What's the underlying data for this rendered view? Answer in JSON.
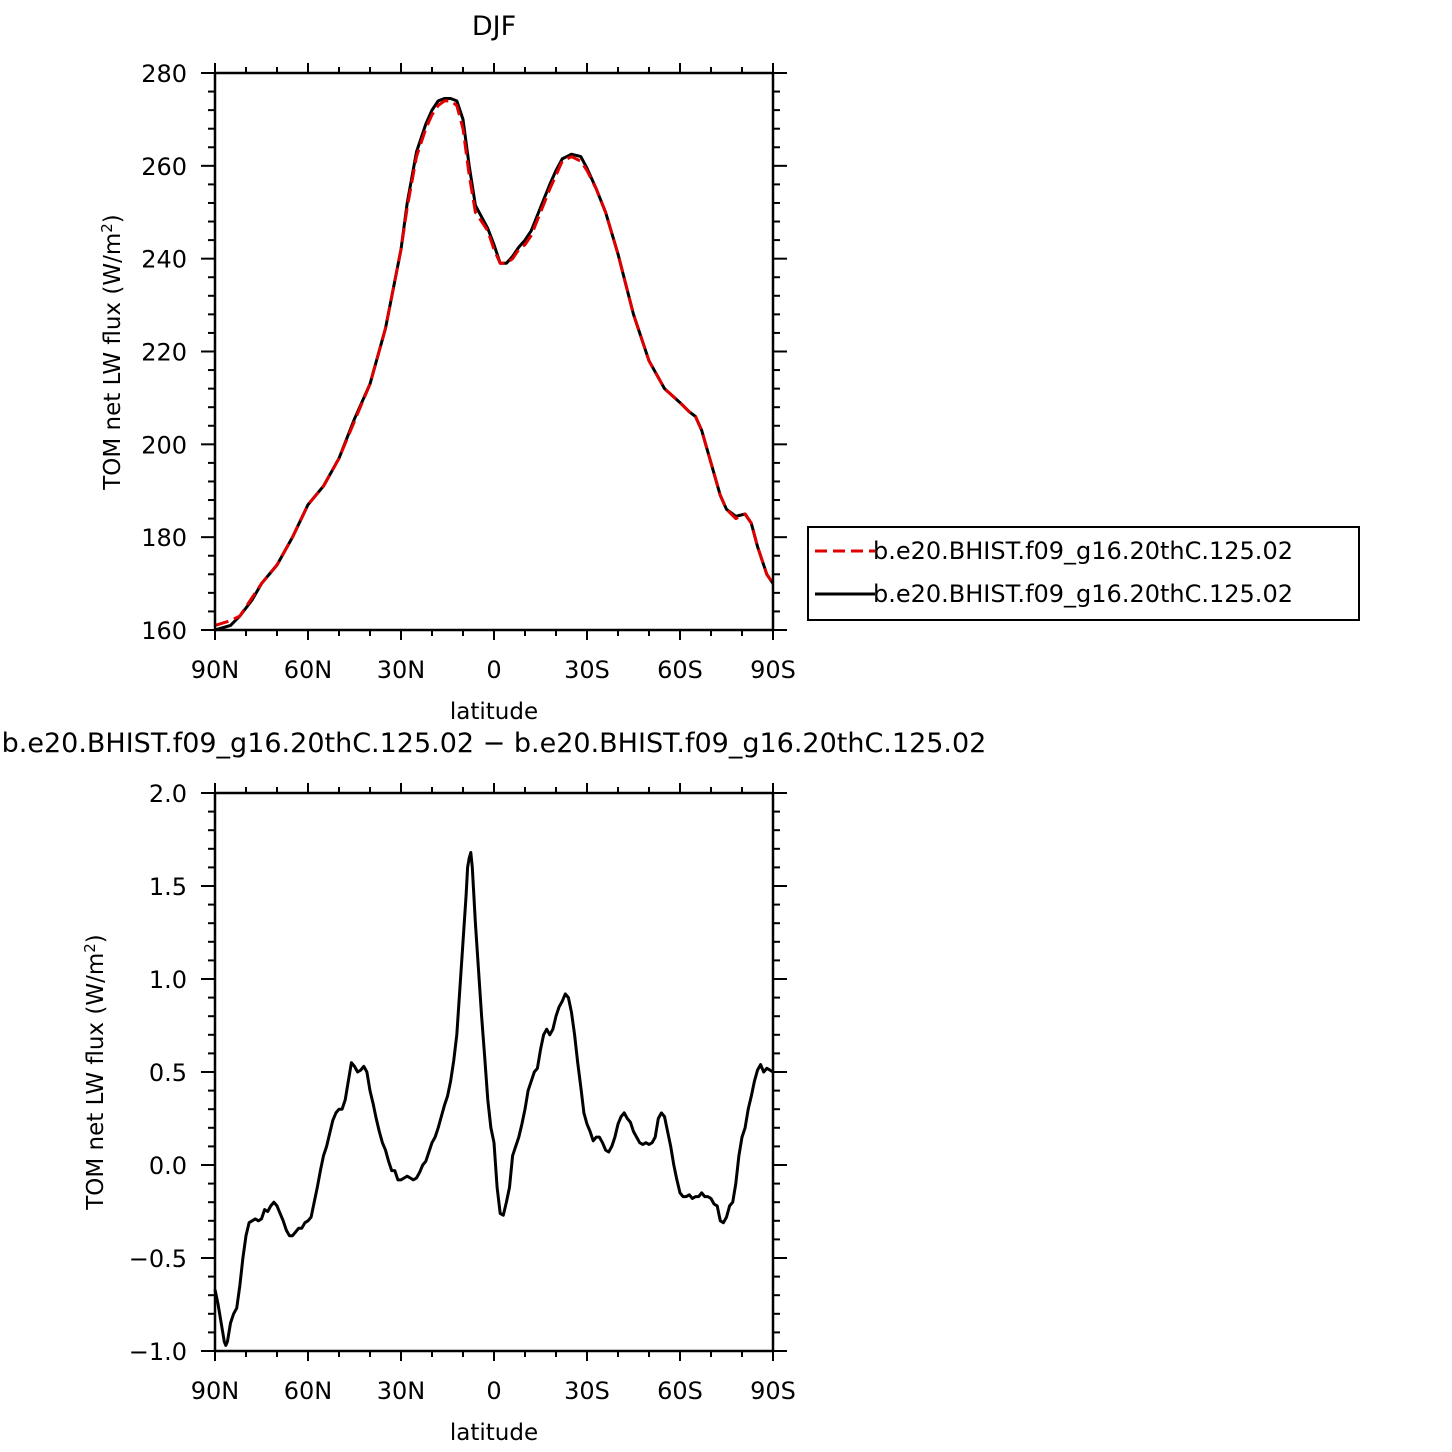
{
  "chart_data": [
    {
      "type": "line",
      "title": "DJF",
      "xlabel": "latitude",
      "ylabel": "TOM net LW flux (W/m²)",
      "ylabel_main": "TOM net LW flux (W/m",
      "ylabel_sup": "2",
      "ylabel_end": ")",
      "xlim": [
        -90,
        90
      ],
      "ylim": [
        160,
        280
      ],
      "xticks": [
        -90,
        -60,
        -30,
        0,
        30,
        60,
        90
      ],
      "xticklabels": [
        "90N",
        "60N",
        "30N",
        "0",
        "30S",
        "60S",
        "90S"
      ],
      "yticks": [
        160,
        180,
        200,
        220,
        240,
        260,
        280
      ],
      "yticklabels": [
        "160",
        "180",
        "200",
        "220",
        "240",
        "260",
        "280"
      ],
      "legend_position": "right",
      "series": [
        {
          "name": "b.e20.BHIST.f09_g16.20thC.125.02",
          "color": "#e00000",
          "dash": "dashed",
          "x": [
            -90,
            -85,
            -82,
            -78,
            -75,
            -70,
            -65,
            -60,
            -55,
            -50,
            -45,
            -40,
            -35,
            -30,
            -28,
            -25,
            -22,
            -20,
            -18,
            -16,
            -14,
            -12,
            -10,
            -8,
            -6,
            -4,
            -2,
            0,
            2,
            4,
            6,
            8,
            10,
            12,
            15,
            18,
            20,
            22,
            25,
            28,
            30,
            33,
            36,
            40,
            45,
            50,
            55,
            60,
            63,
            65,
            67,
            70,
            73,
            75,
            78,
            81,
            83,
            85,
            88,
            90
          ],
          "values": [
            161,
            162,
            163,
            167,
            170,
            174,
            180,
            187,
            191,
            197,
            205,
            213,
            225,
            242,
            251,
            262,
            268,
            271,
            273,
            274,
            274,
            273,
            268,
            258,
            250,
            248,
            246,
            242,
            239,
            239,
            240,
            242,
            243,
            245,
            250,
            255,
            258,
            261,
            262,
            261,
            259,
            255,
            250,
            241,
            228,
            218,
            212,
            209,
            207,
            206,
            203,
            196,
            189,
            186,
            184,
            185,
            183,
            178,
            172,
            170
          ]
        },
        {
          "name": "b.e20.BHIST.f09_g16.20thC.125.02",
          "color": "#000000",
          "dash": "solid",
          "x": [
            -90,
            -85,
            -82,
            -78,
            -75,
            -70,
            -65,
            -60,
            -55,
            -50,
            -45,
            -40,
            -35,
            -30,
            -28,
            -25,
            -22,
            -20,
            -18,
            -16,
            -14,
            -12,
            -10,
            -8,
            -6,
            -4,
            -2,
            0,
            2,
            4,
            6,
            8,
            10,
            12,
            15,
            18,
            20,
            22,
            25,
            28,
            30,
            33,
            36,
            40,
            45,
            50,
            55,
            60,
            63,
            65,
            67,
            70,
            73,
            75,
            78,
            81,
            83,
            85,
            88,
            90
          ],
          "values": [
            160,
            161,
            163,
            166.5,
            170,
            174,
            180,
            187,
            191,
            197,
            205.5,
            213,
            225,
            242,
            252,
            263,
            269,
            272,
            274,
            274.5,
            274.5,
            274,
            270,
            260,
            251.5,
            249,
            246.5,
            243,
            239,
            239,
            240.5,
            242.5,
            244,
            246,
            251,
            256,
            259,
            261.5,
            262.5,
            262,
            259.5,
            255,
            250,
            241,
            228,
            218,
            212,
            209,
            207,
            206,
            203,
            196,
            189,
            186,
            184.5,
            185,
            183,
            178,
            172,
            170
          ]
        }
      ]
    },
    {
      "type": "line",
      "title": "b.e20.BHIST.f09_g16.20thC.125.02 − b.e20.BHIST.f09_g16.20thC.125.02",
      "xlabel": "latitude",
      "ylabel": "TOM net LW flux (W/m²)",
      "ylabel_main": "TOM net LW flux (W/m",
      "ylabel_sup": "2",
      "ylabel_end": ")",
      "xlim": [
        -90,
        90
      ],
      "ylim": [
        -1.0,
        2.0
      ],
      "xticks": [
        -90,
        -60,
        -30,
        0,
        30,
        60,
        90
      ],
      "xticklabels": [
        "90N",
        "60N",
        "30N",
        "0",
        "30S",
        "60S",
        "90S"
      ],
      "yticks": [
        -1.0,
        -0.5,
        0.0,
        0.5,
        1.0,
        1.5,
        2.0
      ],
      "yticklabels": [
        "−1.0",
        "−0.5",
        "0.0",
        "0.5",
        "1.0",
        "1.5",
        "2.0"
      ],
      "series": [
        {
          "color": "#000000",
          "dash": "solid",
          "x": [
            -90,
            -89,
            -88,
            -87,
            -86.5,
            -86,
            -85,
            -84,
            -83,
            -82,
            -81,
            -80,
            -79,
            -78,
            -77,
            -76,
            -75,
            -74,
            -73,
            -72,
            -71,
            -70,
            -69,
            -68,
            -67,
            -66,
            -65,
            -64,
            -63,
            -62,
            -61,
            -60,
            -59,
            -58,
            -57,
            -56,
            -55,
            -54,
            -53,
            -52,
            -51,
            -50,
            -49,
            -48,
            -47,
            -46,
            -45,
            -44,
            -43,
            -42,
            -41,
            -40,
            -39,
            -38,
            -37,
            -36,
            -35,
            -34,
            -33,
            -32,
            -31,
            -30,
            -29,
            -28,
            -27,
            -26,
            -25,
            -24,
            -23,
            -22,
            -21,
            -20,
            -19,
            -18,
            -17,
            -16,
            -15,
            -14,
            -13,
            -12,
            -11,
            -10,
            -9,
            -8.5,
            -8,
            -7.5,
            -7,
            -6,
            -5,
            -4,
            -3,
            -2,
            -1,
            0,
            1,
            2,
            3,
            4,
            5,
            6,
            7,
            8,
            9,
            10,
            11,
            12,
            13,
            14,
            15,
            16,
            17,
            18,
            19,
            20,
            21,
            22,
            23,
            24,
            25,
            26,
            27,
            28,
            29,
            30,
            31,
            32,
            33,
            34,
            35,
            36,
            37,
            38,
            39,
            40,
            41,
            42,
            43,
            44,
            45,
            46,
            47,
            48,
            49,
            50,
            51,
            52,
            53,
            54,
            55,
            56,
            57,
            58,
            59,
            60,
            61,
            62,
            63,
            64,
            65,
            66,
            67,
            68,
            69,
            70,
            71,
            72,
            73,
            74,
            75,
            76,
            77,
            78,
            79,
            80,
            81,
            82,
            83,
            84,
            85,
            86,
            87,
            88,
            89,
            90
          ],
          "values": [
            -0.67,
            -0.75,
            -0.85,
            -0.95,
            -0.97,
            -0.95,
            -0.85,
            -0.8,
            -0.77,
            -0.65,
            -0.5,
            -0.38,
            -0.31,
            -0.3,
            -0.29,
            -0.3,
            -0.29,
            -0.24,
            -0.25,
            -0.22,
            -0.2,
            -0.22,
            -0.26,
            -0.3,
            -0.35,
            -0.38,
            -0.38,
            -0.36,
            -0.34,
            -0.34,
            -0.31,
            -0.3,
            -0.28,
            -0.2,
            -0.12,
            -0.03,
            0.05,
            0.1,
            0.17,
            0.24,
            0.28,
            0.3,
            0.3,
            0.35,
            0.45,
            0.55,
            0.53,
            0.5,
            0.51,
            0.53,
            0.5,
            0.4,
            0.33,
            0.25,
            0.18,
            0.12,
            0.08,
            0.02,
            -0.03,
            -0.03,
            -0.08,
            -0.08,
            -0.07,
            -0.06,
            -0.07,
            -0.08,
            -0.07,
            -0.04,
            0.0,
            0.02,
            0.07,
            0.12,
            0.15,
            0.2,
            0.26,
            0.32,
            0.37,
            0.45,
            0.56,
            0.7,
            0.95,
            1.2,
            1.45,
            1.6,
            1.65,
            1.68,
            1.6,
            1.3,
            1.05,
            0.8,
            0.58,
            0.35,
            0.2,
            0.12,
            -0.12,
            -0.26,
            -0.27,
            -0.2,
            -0.12,
            0.05,
            0.1,
            0.15,
            0.22,
            0.3,
            0.4,
            0.45,
            0.5,
            0.52,
            0.62,
            0.7,
            0.73,
            0.7,
            0.73,
            0.8,
            0.85,
            0.88,
            0.92,
            0.9,
            0.82,
            0.7,
            0.55,
            0.42,
            0.28,
            0.22,
            0.18,
            0.13,
            0.15,
            0.15,
            0.12,
            0.08,
            0.07,
            0.1,
            0.15,
            0.22,
            0.26,
            0.28,
            0.25,
            0.23,
            0.18,
            0.15,
            0.12,
            0.11,
            0.12,
            0.11,
            0.12,
            0.15,
            0.25,
            0.28,
            0.26,
            0.18,
            0.1,
            0.0,
            -0.08,
            -0.15,
            -0.17,
            -0.17,
            -0.16,
            -0.18,
            -0.17,
            -0.17,
            -0.15,
            -0.17,
            -0.17,
            -0.18,
            -0.21,
            -0.22,
            -0.3,
            -0.31,
            -0.28,
            -0.22,
            -0.2,
            -0.1,
            0.05,
            0.15,
            0.2,
            0.3,
            0.37,
            0.45,
            0.51,
            0.54,
            0.5,
            0.52,
            0.51,
            0.5
          ]
        }
      ]
    }
  ]
}
